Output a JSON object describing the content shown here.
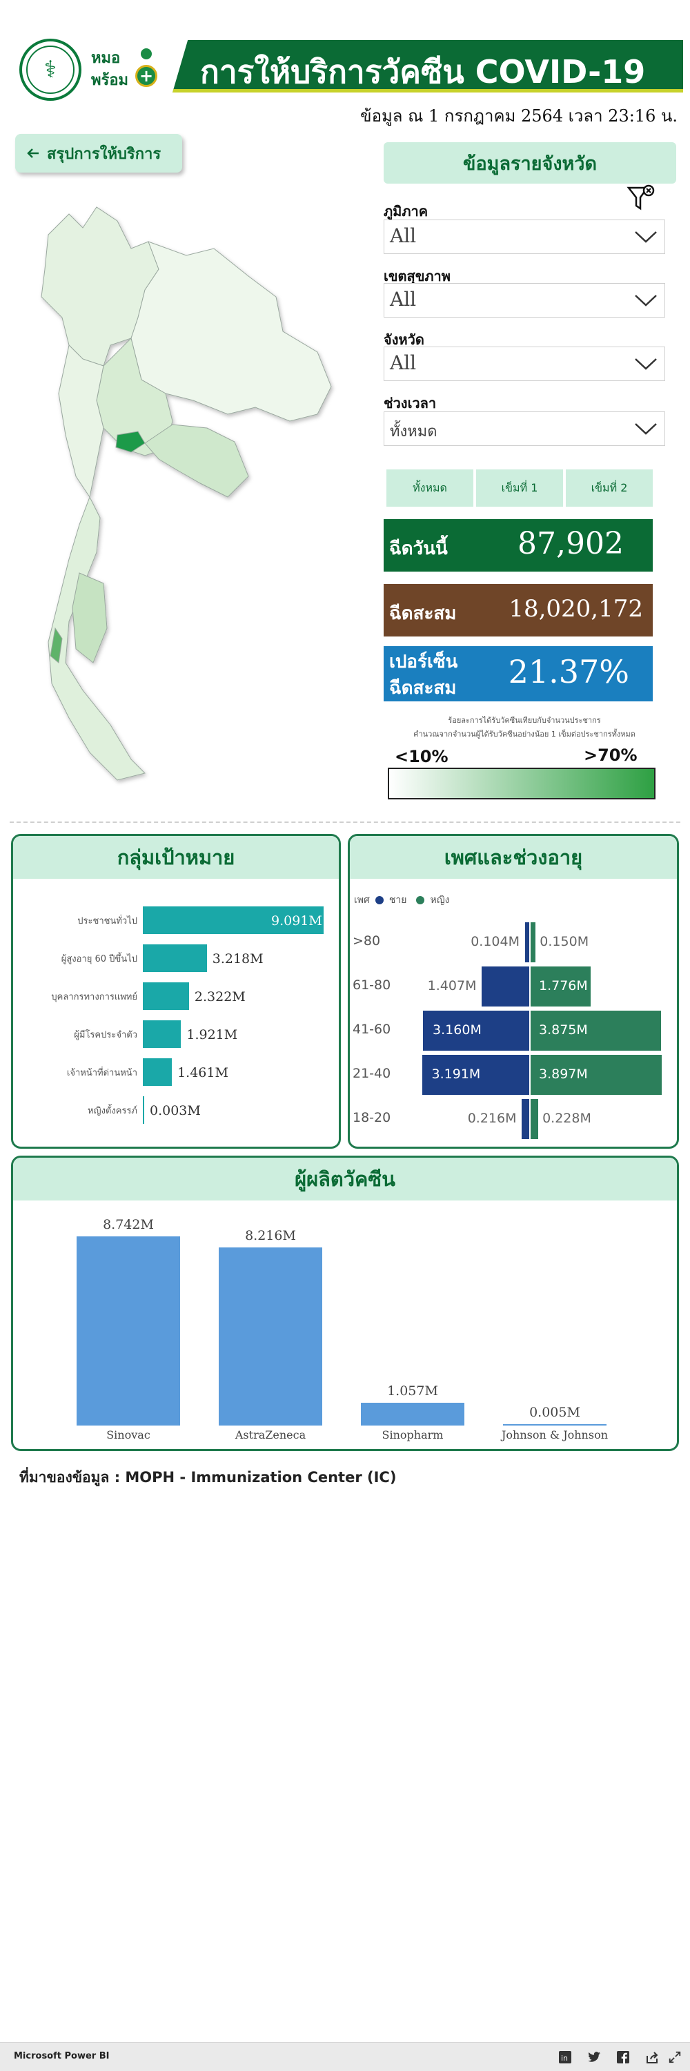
{
  "header": {
    "title": "การให้บริการวัคซีน COVID-19",
    "update_date": "ข้อมูล ณ 1 กรกฎาคม 2564 เวลา 23:16 น.",
    "logo_text_line1": "หมอ",
    "logo_text_line2": "พร้อม"
  },
  "nav": {
    "back_label": "สรุปการให้บริการ"
  },
  "filters": {
    "panel_title": "ข้อมูลรายจังหวัด",
    "region": {
      "label": "ภูมิภาค",
      "value": "All"
    },
    "health_zone": {
      "label": "เขตสุขภาพ",
      "value": "All"
    },
    "province": {
      "label": "จังหวัด",
      "value": "All"
    },
    "period": {
      "label": "ช่วงเวลา",
      "value": "ทั้งหมด"
    },
    "period_buttons": [
      "ทั้งหมด",
      "เข็มที่ 1",
      "เข็มที่ 2"
    ]
  },
  "kpis": {
    "today": {
      "label": "ฉีดวันนี้",
      "value": "87,902",
      "color": "#0b6b35"
    },
    "cumulative": {
      "label": "ฉีดสะสม",
      "value": "18,020,172",
      "color": "#6f4528"
    },
    "percent": {
      "label_line1": "เปอร์เซ็น",
      "label_line2": "ฉีดสะสม",
      "value": "21.37%",
      "color": "#1a7fbf"
    }
  },
  "legend": {
    "note_line1": "ร้อยละการได้รับวัคซีนเทียบกับจำนวนประชากร",
    "note_line2": "คำนวณจากจำนวนผู้ได้รับวัคซีนอย่างน้อย 1 เข็มต่อประชากรทั้งหมด",
    "min_label": "<10%",
    "max_label": ">70%"
  },
  "target_groups": {
    "title": "กลุ่มเป้าหมาย",
    "chart_data": {
      "type": "bar",
      "orientation": "horizontal",
      "categories": [
        "ประชาชนทั่วไป",
        "ผู้สูงอายุ 60 ปีขึ้นไป",
        "บุคลากรทางการแพทย์",
        "ผู้มีโรคประจำตัว",
        "เจ้าหน้าที่ด่านหน้า",
        "หญิงตั้งครรภ์"
      ],
      "values": [
        9.091,
        3.218,
        2.322,
        1.921,
        1.461,
        0.003
      ],
      "labels": [
        "9.091M",
        "3.218M",
        "2.322M",
        "1.921M",
        "1.461M",
        "0.003M"
      ],
      "unit": "M"
    }
  },
  "gender_age": {
    "title": "เพศและช่วงอายุ",
    "legend": {
      "title": "เพศ",
      "male": "ชาย",
      "female": "หญิง"
    },
    "chart_data": {
      "type": "bar",
      "orientation": "diverging",
      "categories": [
        ">80",
        "61-80",
        "41-60",
        "21-40",
        "18-20"
      ],
      "series": [
        {
          "name": "ชาย",
          "values": [
            0.104,
            1.407,
            3.16,
            3.191,
            0.216
          ],
          "labels": [
            "0.104M",
            "1.407M",
            "3.160M",
            "3.191M",
            "0.216M"
          ]
        },
        {
          "name": "หญิง",
          "values": [
            0.15,
            1.776,
            3.875,
            3.897,
            0.228
          ],
          "labels": [
            "0.150M",
            "1.776M",
            "3.875M",
            "3.897M",
            "0.228M"
          ]
        }
      ],
      "colors": {
        "male": "#1d3f86",
        "female": "#2c7f5b"
      }
    }
  },
  "manufacturers": {
    "title": "ผู้ผลิตวัคซีน",
    "chart_data": {
      "type": "bar",
      "categories": [
        "Sinovac",
        "AstraZeneca",
        "Sinopharm",
        "Johnson & Johnson"
      ],
      "values": [
        8.742,
        8.216,
        1.057,
        0.005
      ],
      "labels": [
        "8.742M",
        "8.216M",
        "1.057M",
        "0.005M"
      ],
      "color": "#5a9bdb"
    }
  },
  "source": "ที่มาของข้อมูล : MOPH - Immunization Center (IC)",
  "footer": {
    "brand": "Microsoft Power BI",
    "icons": [
      "linkedin-icon",
      "twitter-icon",
      "facebook-icon",
      "share-icon",
      "fullscreen-icon"
    ]
  }
}
